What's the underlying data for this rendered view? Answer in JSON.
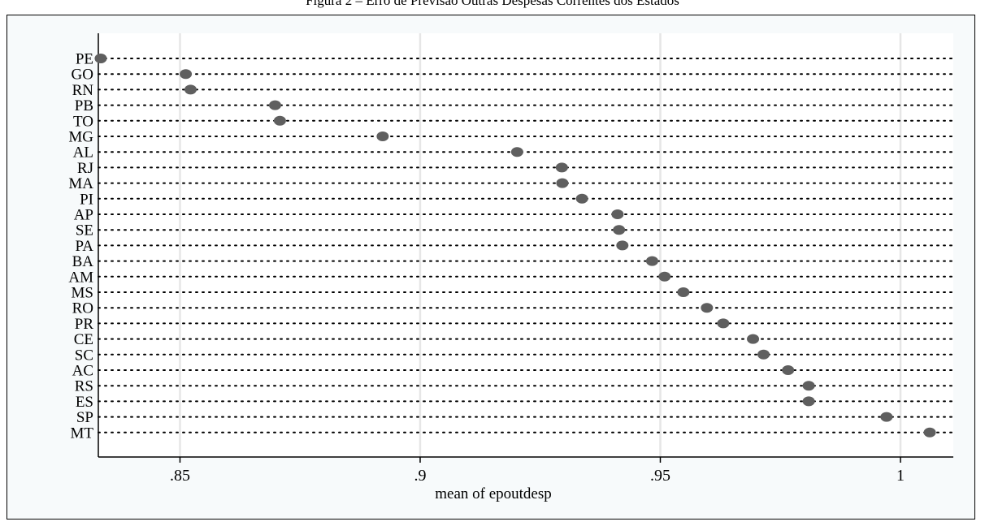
{
  "figure": {
    "title": "Figura 2 – Erro de Previsão Outras Despesas Correntes dos Estados"
  },
  "colors": {
    "background": "#ffffff",
    "panel": "#f7fafb",
    "plot_area": "#ffffff",
    "gridline": "#e6e6e6",
    "dotline": "#000000",
    "marker": "#5f5f5f",
    "axis": "#000000"
  },
  "chart_data": {
    "type": "dot",
    "title": "",
    "xlabel": "mean of epoutdesp",
    "ylabel": "",
    "xlim": [
      0.833,
      1.011
    ],
    "grid": true,
    "xticks": [
      {
        "value": 0.85,
        "label": ".85"
      },
      {
        "value": 0.9,
        "label": ".9"
      },
      {
        "value": 0.95,
        "label": ".95"
      },
      {
        "value": 1.0,
        "label": "1"
      }
    ],
    "categories": [
      "PE",
      "GO",
      "RN",
      "PB",
      "TO",
      "MG",
      "AL",
      "RJ",
      "MA",
      "PI",
      "AP",
      "SE",
      "PA",
      "BA",
      "AM",
      "MS",
      "RO",
      "PR",
      "CE",
      "SC",
      "AC",
      "RS",
      "ES",
      "SP",
      "MT"
    ],
    "values": [
      0.8335,
      0.8512,
      0.8522,
      0.8698,
      0.8708,
      0.8922,
      0.9202,
      0.9295,
      0.9296,
      0.9337,
      0.9411,
      0.9414,
      0.9421,
      0.9483,
      0.9509,
      0.9548,
      0.9597,
      0.9631,
      0.9693,
      0.9715,
      0.9766,
      0.9809,
      0.9809,
      0.9971,
      1.0061
    ]
  }
}
